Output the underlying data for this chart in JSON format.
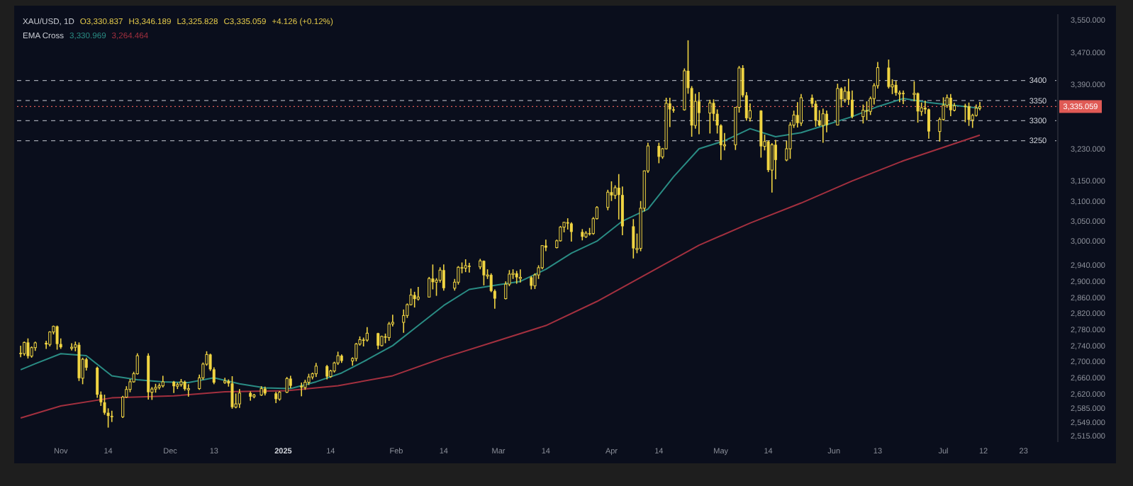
{
  "chart_data": {
    "type": "candlestick",
    "title": "XAU/USD, 1D",
    "annotations": [
      "O3,330.837",
      "H3,346.189",
      "L3,325.828",
      "C3,335.059",
      "+4.126 (+0.12%)"
    ],
    "legend_title": "EMA Cross",
    "legend": "top left",
    "color": "#f0d442",
    "x": [
      "2024-10-21",
      "2024-10-22",
      "2024-10-23",
      "2024-10-24",
      "2024-10-25",
      "2024-10-28",
      "2024-10-29",
      "2024-10-30",
      "2024-10-31",
      "2024-11-01",
      "2024-11-04",
      "2024-11-05",
      "2024-11-06",
      "2024-11-07",
      "2024-11-08",
      "2024-11-11",
      "2024-11-12",
      "2024-11-13",
      "2024-11-14",
      "2024-11-15",
      "2024-11-18",
      "2024-11-19",
      "2024-11-20",
      "2024-11-21",
      "2024-11-22",
      "2024-11-25",
      "2024-11-26",
      "2024-11-27",
      "2024-11-28",
      "2024-11-29",
      "2024-12-02",
      "2024-12-03",
      "2024-12-04",
      "2024-12-05",
      "2024-12-06",
      "2024-12-09",
      "2024-12-10",
      "2024-12-11",
      "2024-12-12",
      "2024-12-13",
      "2024-12-16",
      "2024-12-17",
      "2024-12-18",
      "2024-12-19",
      "2024-12-20",
      "2024-12-23",
      "2024-12-24",
      "2024-12-26",
      "2024-12-27",
      "2024-12-30",
      "2024-12-31",
      "2025-01-02",
      "2025-01-03",
      "2025-01-06",
      "2025-01-07",
      "2025-01-08",
      "2025-01-09",
      "2025-01-10",
      "2025-01-13",
      "2025-01-14",
      "2025-01-15",
      "2025-01-16",
      "2025-01-17",
      "2025-01-20",
      "2025-01-21",
      "2025-01-22",
      "2025-01-23",
      "2025-01-24",
      "2025-01-27",
      "2025-01-28",
      "2025-01-29",
      "2025-01-30",
      "2025-01-31",
      "2025-02-03",
      "2025-02-04",
      "2025-02-05",
      "2025-02-06",
      "2025-02-07",
      "2025-02-10",
      "2025-02-11",
      "2025-02-12",
      "2025-02-13",
      "2025-02-14",
      "2025-02-17",
      "2025-02-18",
      "2025-02-19",
      "2025-02-20",
      "2025-02-21",
      "2025-02-24",
      "2025-02-25",
      "2025-02-26",
      "2025-02-27",
      "2025-02-28",
      "2025-03-03",
      "2025-03-04",
      "2025-03-05",
      "2025-03-06",
      "2025-03-07",
      "2025-03-10",
      "2025-03-11",
      "2025-03-12",
      "2025-03-13",
      "2025-03-14",
      "2025-03-17",
      "2025-03-18",
      "2025-03-19",
      "2025-03-20",
      "2025-03-21",
      "2025-03-24",
      "2025-03-25",
      "2025-03-26",
      "2025-03-27",
      "2025-03-28",
      "2025-03-31",
      "2025-04-01",
      "2025-04-02",
      "2025-04-03",
      "2025-04-04",
      "2025-04-07",
      "2025-04-08",
      "2025-04-09",
      "2025-04-10",
      "2025-04-11",
      "2025-04-14",
      "2025-04-15",
      "2025-04-16",
      "2025-04-17",
      "2025-04-18",
      "2025-04-21",
      "2025-04-22",
      "2025-04-23",
      "2025-04-24",
      "2025-04-25",
      "2025-04-28",
      "2025-04-29",
      "2025-04-30",
      "2025-05-01",
      "2025-05-02",
      "2025-05-05",
      "2025-05-06",
      "2025-05-07",
      "2025-05-08",
      "2025-05-09",
      "2025-05-12",
      "2025-05-13",
      "2025-05-14",
      "2025-05-15",
      "2025-05-16",
      "2025-05-19",
      "2025-05-20",
      "2025-05-21",
      "2025-05-22",
      "2025-05-23",
      "2025-05-26",
      "2025-05-27",
      "2025-05-28",
      "2025-05-29",
      "2025-05-30",
      "2025-06-02",
      "2025-06-03",
      "2025-06-04",
      "2025-06-05",
      "2025-06-06",
      "2025-06-09",
      "2025-06-10",
      "2025-06-11",
      "2025-06-12",
      "2025-06-13",
      "2025-06-16",
      "2025-06-17",
      "2025-06-18",
      "2025-06-19",
      "2025-06-20",
      "2025-06-23",
      "2025-06-24",
      "2025-06-25",
      "2025-06-26",
      "2025-06-27",
      "2025-06-30",
      "2025-07-01",
      "2025-07-02",
      "2025-07-03",
      "2025-07-04",
      "2025-07-07",
      "2025-07-08",
      "2025-07-09",
      "2025-07-10",
      "2025-07-11"
    ],
    "ohlc": [
      [
        2722,
        2740,
        2711,
        2720
      ],
      [
        2720,
        2750,
        2715,
        2748
      ],
      [
        2748,
        2758,
        2708,
        2714
      ],
      [
        2714,
        2738,
        2710,
        2735
      ],
      [
        2735,
        2750,
        2727,
        2747
      ],
      [
        2747,
        2752,
        2732,
        2743
      ],
      [
        2743,
        2776,
        2738,
        2774
      ],
      [
        2774,
        2790,
        2768,
        2788
      ],
      [
        2788,
        2790,
        2730,
        2744
      ],
      [
        2744,
        2758,
        2732,
        2736
      ],
      [
        2736,
        2746,
        2728,
        2736
      ],
      [
        2736,
        2750,
        2726,
        2742
      ],
      [
        2742,
        2748,
        2652,
        2659
      ],
      [
        2659,
        2710,
        2644,
        2706
      ],
      [
        2706,
        2710,
        2678,
        2685
      ],
      [
        2685,
        2688,
        2610,
        2618
      ],
      [
        2618,
        2626,
        2590,
        2599
      ],
      [
        2599,
        2618,
        2568,
        2573
      ],
      [
        2573,
        2584,
        2536,
        2565
      ],
      [
        2565,
        2578,
        2550,
        2563
      ],
      [
        2563,
        2615,
        2560,
        2612
      ],
      [
        2612,
        2639,
        2610,
        2631
      ],
      [
        2631,
        2657,
        2624,
        2650
      ],
      [
        2650,
        2675,
        2648,
        2670
      ],
      [
        2670,
        2721,
        2668,
        2715
      ],
      [
        2715,
        2721,
        2606,
        2624
      ],
      [
        2624,
        2637,
        2605,
        2632
      ],
      [
        2632,
        2645,
        2623,
        2636
      ],
      [
        2636,
        2646,
        2631,
        2640
      ],
      [
        2640,
        2665,
        2636,
        2650
      ],
      [
        2650,
        2652,
        2622,
        2639
      ],
      [
        2639,
        2648,
        2632,
        2643
      ],
      [
        2643,
        2657,
        2638,
        2650
      ],
      [
        2650,
        2653,
        2628,
        2632
      ],
      [
        2632,
        2644,
        2613,
        2633
      ],
      [
        2633,
        2668,
        2630,
        2660
      ],
      [
        2660,
        2698,
        2655,
        2694
      ],
      [
        2694,
        2726,
        2690,
        2718
      ],
      [
        2718,
        2720,
        2677,
        2681
      ],
      [
        2681,
        2686,
        2644,
        2648
      ],
      [
        2648,
        2660,
        2645,
        2652
      ],
      [
        2652,
        2656,
        2638,
        2646
      ],
      [
        2646,
        2664,
        2583,
        2587
      ],
      [
        2587,
        2621,
        2584,
        2595
      ],
      [
        2595,
        2632,
        2585,
        2622
      ],
      [
        2622,
        2626,
        2603,
        2613
      ],
      [
        2613,
        2620,
        2609,
        2617
      ],
      [
        2617,
        2639,
        2615,
        2633
      ],
      [
        2633,
        2638,
        2616,
        2621
      ],
      [
        2621,
        2625,
        2597,
        2607
      ],
      [
        2607,
        2627,
        2603,
        2624
      ],
      [
        2624,
        2662,
        2622,
        2658
      ],
      [
        2658,
        2665,
        2634,
        2640
      ],
      [
        2640,
        2648,
        2614,
        2636
      ],
      [
        2636,
        2655,
        2630,
        2649
      ],
      [
        2649,
        2670,
        2642,
        2662
      ],
      [
        2662,
        2673,
        2656,
        2670
      ],
      [
        2670,
        2697,
        2662,
        2689
      ],
      [
        2689,
        2692,
        2656,
        2663
      ],
      [
        2663,
        2680,
        2660,
        2677
      ],
      [
        2677,
        2700,
        2673,
        2697
      ],
      [
        2697,
        2725,
        2692,
        2715
      ],
      [
        2715,
        2718,
        2697,
        2702
      ],
      [
        2702,
        2711,
        2690,
        2708
      ],
      [
        2708,
        2747,
        2701,
        2744
      ],
      [
        2744,
        2763,
        2740,
        2755
      ],
      [
        2755,
        2760,
        2738,
        2754
      ],
      [
        2754,
        2786,
        2750,
        2771
      ],
      [
        2771,
        2772,
        2731,
        2740
      ],
      [
        2740,
        2765,
        2738,
        2763
      ],
      [
        2763,
        2770,
        2746,
        2760
      ],
      [
        2760,
        2799,
        2752,
        2794
      ],
      [
        2794,
        2817,
        2788,
        2798
      ],
      [
        2798,
        2830,
        2772,
        2815
      ],
      [
        2815,
        2845,
        2809,
        2842
      ],
      [
        2842,
        2882,
        2840,
        2866
      ],
      [
        2866,
        2874,
        2835,
        2856
      ],
      [
        2856,
        2886,
        2852,
        2861
      ],
      [
        2861,
        2911,
        2860,
        2907
      ],
      [
        2907,
        2942,
        2880,
        2898
      ],
      [
        2898,
        2908,
        2864,
        2903
      ],
      [
        2903,
        2935,
        2897,
        2928
      ],
      [
        2928,
        2942,
        2877,
        2883
      ],
      [
        2883,
        2906,
        2877,
        2898
      ],
      [
        2898,
        2938,
        2892,
        2935
      ],
      [
        2935,
        2947,
        2920,
        2933
      ],
      [
        2933,
        2955,
        2923,
        2939
      ],
      [
        2939,
        2946,
        2922,
        2936
      ],
      [
        2936,
        2956,
        2930,
        2951
      ],
      [
        2951,
        2952,
        2890,
        2915
      ],
      [
        2915,
        2930,
        2906,
        2916
      ],
      [
        2916,
        2920,
        2873,
        2876
      ],
      [
        2876,
        2880,
        2832,
        2857
      ],
      [
        2857,
        2900,
        2855,
        2893
      ],
      [
        2893,
        2928,
        2888,
        2918
      ],
      [
        2918,
        2930,
        2906,
        2920
      ],
      [
        2920,
        2926,
        2894,
        2910
      ],
      [
        2910,
        2930,
        2897,
        2910
      ],
      [
        2910,
        2913,
        2880,
        2889
      ],
      [
        2889,
        2920,
        2881,
        2916
      ],
      [
        2916,
        2940,
        2906,
        2934
      ],
      [
        2934,
        2990,
        2930,
        2989
      ],
      [
        2989,
        3004,
        2975,
        2984
      ],
      [
        2984,
        3004,
        2982,
        3001
      ],
      [
        3001,
        3038,
        2999,
        3035
      ],
      [
        3035,
        3048,
        3022,
        3047
      ],
      [
        3047,
        3057,
        3029,
        3044
      ],
      [
        3044,
        3047,
        2999,
        3023
      ],
      [
        3023,
        3030,
        3002,
        3011
      ],
      [
        3011,
        3025,
        3008,
        3020
      ],
      [
        3020,
        3033,
        3014,
        3019
      ],
      [
        3019,
        3060,
        3016,
        3056
      ],
      [
        3056,
        3087,
        3054,
        3084
      ],
      [
        3084,
        3128,
        3077,
        3122
      ],
      [
        3122,
        3149,
        3100,
        3114
      ],
      [
        3114,
        3139,
        3105,
        3133
      ],
      [
        3133,
        3167,
        3054,
        3115
      ],
      [
        3115,
        3136,
        3015,
        3037
      ],
      [
        3037,
        3055,
        2957,
        2982
      ],
      [
        2982,
        3019,
        2970,
        2982
      ],
      [
        2982,
        3100,
        2975,
        3082
      ],
      [
        3082,
        3176,
        3074,
        3175
      ],
      [
        3175,
        3245,
        3170,
        3237
      ],
      [
        3237,
        3245,
        3194,
        3210
      ],
      [
        3210,
        3232,
        3205,
        3230
      ],
      [
        3230,
        3357,
        3228,
        3343
      ],
      [
        3343,
        3357,
        3284,
        3328
      ],
      [
        3328,
        3335,
        3320,
        3327
      ],
      [
        3327,
        3430,
        3325,
        3424
      ],
      [
        3424,
        3500,
        3367,
        3381
      ],
      [
        3381,
        3386,
        3260,
        3288
      ],
      [
        3288,
        3367,
        3280,
        3348
      ],
      [
        3348,
        3371,
        3266,
        3319
      ],
      [
        3319,
        3352,
        3268,
        3344
      ],
      [
        3344,
        3353,
        3299,
        3317
      ],
      [
        3317,
        3328,
        3268,
        3288
      ],
      [
        3288,
        3291,
        3202,
        3239
      ],
      [
        3239,
        3269,
        3226,
        3240
      ],
      [
        3240,
        3334,
        3227,
        3333
      ],
      [
        3333,
        3436,
        3320,
        3431
      ],
      [
        3431,
        3438,
        3358,
        3363
      ],
      [
        3363,
        3371,
        3300,
        3306
      ],
      [
        3306,
        3343,
        3298,
        3325
      ],
      [
        3325,
        3326,
        3208,
        3236
      ],
      [
        3236,
        3265,
        3226,
        3248
      ],
      [
        3248,
        3251,
        3172,
        3177
      ],
      [
        3177,
        3244,
        3121,
        3240
      ],
      [
        3240,
        3252,
        3154,
        3202
      ],
      [
        3202,
        3250,
        3199,
        3230
      ],
      [
        3230,
        3296,
        3205,
        3289
      ],
      [
        3289,
        3325,
        3282,
        3314
      ],
      [
        3314,
        3346,
        3283,
        3294
      ],
      [
        3294,
        3366,
        3287,
        3357
      ],
      [
        3357,
        3365,
        3333,
        3342
      ],
      [
        3342,
        3350,
        3285,
        3300
      ],
      [
        3300,
        3326,
        3286,
        3288
      ],
      [
        3288,
        3330,
        3245,
        3317
      ],
      [
        3317,
        3325,
        3271,
        3289
      ],
      [
        3289,
        3392,
        3288,
        3380
      ],
      [
        3380,
        3383,
        3333,
        3353
      ],
      [
        3353,
        3385,
        3345,
        3373
      ],
      [
        3373,
        3404,
        3339,
        3352
      ],
      [
        3352,
        3375,
        3306,
        3310
      ],
      [
        3310,
        3340,
        3293,
        3326
      ],
      [
        3326,
        3348,
        3301,
        3323
      ],
      [
        3323,
        3360,
        3314,
        3355
      ],
      [
        3355,
        3393,
        3340,
        3387
      ],
      [
        3387,
        3446,
        3380,
        3432
      ],
      [
        3432,
        3452,
        3380,
        3384
      ],
      [
        3384,
        3403,
        3366,
        3389
      ],
      [
        3389,
        3399,
        3362,
        3369
      ],
      [
        3369,
        3375,
        3346,
        3369
      ],
      [
        3369,
        3375,
        3341,
        3368
      ],
      [
        3368,
        3398,
        3348,
        3368
      ],
      [
        3368,
        3370,
        3295,
        3323
      ],
      [
        3323,
        3345,
        3312,
        3332
      ],
      [
        3332,
        3350,
        3317,
        3328
      ],
      [
        3328,
        3330,
        3255,
        3273
      ],
      [
        3273,
        3308,
        3248,
        3303
      ],
      [
        3303,
        3358,
        3300,
        3338
      ],
      [
        3338,
        3365,
        3332,
        3357
      ],
      [
        3357,
        3366,
        3311,
        3326
      ],
      [
        3326,
        3344,
        3323,
        3337
      ],
      [
        3337,
        3342,
        3296,
        3336
      ],
      [
        3336,
        3345,
        3287,
        3302
      ],
      [
        3302,
        3317,
        3282,
        3313
      ],
      [
        3313,
        3340,
        3310,
        3331
      ],
      [
        3330.837,
        3346.189,
        3325.828,
        3335.059
      ]
    ],
    "series": [
      {
        "type": "line",
        "name": "3,330.969",
        "color": "#2a8c84",
        "x": [
          "2024-10-21",
          "2024-10-25",
          "2024-11-01",
          "2024-11-08",
          "2024-11-15",
          "2024-11-22",
          "2024-11-29",
          "2024-12-06",
          "2024-12-13",
          "2024-12-20",
          "2024-12-27",
          "2025-01-03",
          "2025-01-10",
          "2025-01-17",
          "2025-01-24",
          "2025-01-31",
          "2025-02-07",
          "2025-02-14",
          "2025-02-21",
          "2025-02-28",
          "2025-03-07",
          "2025-03-14",
          "2025-03-21",
          "2025-03-28",
          "2025-04-04",
          "2025-04-11",
          "2025-04-18",
          "2025-04-25",
          "2025-05-02",
          "2025-05-09",
          "2025-05-16",
          "2025-05-23",
          "2025-05-30",
          "2025-06-06",
          "2025-06-13",
          "2025-06-20",
          "2025-06-27",
          "2025-07-04",
          "2025-07-11"
        ],
        "values": [
          2680,
          2695,
          2720,
          2715,
          2665,
          2655,
          2650,
          2648,
          2660,
          2645,
          2635,
          2633,
          2650,
          2672,
          2705,
          2740,
          2790,
          2840,
          2880,
          2890,
          2900,
          2930,
          2970,
          3000,
          3050,
          3080,
          3160,
          3230,
          3250,
          3280,
          3260,
          3270,
          3290,
          3310,
          3335,
          3355,
          3345,
          3338,
          3331
        ]
      },
      {
        "type": "line",
        "name": "3,264.464",
        "color": "#a3303f",
        "x": [
          "2024-10-21",
          "2024-11-01",
          "2024-11-15",
          "2024-12-02",
          "2024-12-16",
          "2025-01-02",
          "2025-01-16",
          "2025-01-31",
          "2025-02-14",
          "2025-02-28",
          "2025-03-14",
          "2025-03-28",
          "2025-04-11",
          "2025-04-25",
          "2025-05-09",
          "2025-05-23",
          "2025-06-06",
          "2025-06-20",
          "2025-07-11"
        ],
        "values": [
          2560,
          2590,
          2610,
          2615,
          2625,
          2628,
          2640,
          2665,
          2710,
          2750,
          2790,
          2850,
          2920,
          2990,
          3045,
          3095,
          3150,
          3200,
          3264
        ]
      }
    ],
    "ref_lines": [
      {
        "axis": "y",
        "value": 3400,
        "label": "3400",
        "line_style": "dashed"
      },
      {
        "axis": "y",
        "value": 3350,
        "label": "3350",
        "line_style": "dashed"
      },
      {
        "axis": "y",
        "value": 3300,
        "label": "3300",
        "line_style": "dashed"
      },
      {
        "axis": "y",
        "value": 3250,
        "label": "3250",
        "line_style": "dashed"
      },
      {
        "axis": "y",
        "value": 3335.059,
        "label": "3,335.059",
        "color": "#e05a55",
        "line_style": "dotted"
      }
    ],
    "xlim": [
      "2024-10-20",
      "2025-08-01"
    ],
    "xticks": [
      {
        "value": "2024-11-01",
        "label": "Nov"
      },
      {
        "value": "2024-11-14",
        "label": "14"
      },
      {
        "value": "2024-12-01",
        "label": "Dec"
      },
      {
        "value": "2024-12-13",
        "label": "13"
      },
      {
        "value": "2025-01-01",
        "label": "2025"
      },
      {
        "value": "2025-01-14",
        "label": "14"
      },
      {
        "value": "2025-02-01",
        "label": "Feb"
      },
      {
        "value": "2025-02-14",
        "label": "14"
      },
      {
        "value": "2025-03-01",
        "label": "Mar"
      },
      {
        "value": "2025-03-14",
        "label": "14"
      },
      {
        "value": "2025-04-01",
        "label": "Apr"
      },
      {
        "value": "2025-04-14",
        "label": "14"
      },
      {
        "value": "2025-05-01",
        "label": "May"
      },
      {
        "value": "2025-05-14",
        "label": "14"
      },
      {
        "value": "2025-06-01",
        "label": "Jun"
      },
      {
        "value": "2025-06-13",
        "label": "13"
      },
      {
        "value": "2025-07-01",
        "label": "Jul"
      },
      {
        "value": "2025-07-12",
        "label": "12"
      },
      {
        "value": "2025-07-23",
        "label": "23"
      }
    ],
    "ylim": [
      2500,
      3565
    ],
    "yticks": [
      {
        "value": 3550,
        "label": "3,550.000"
      },
      {
        "value": 3470,
        "label": "3,470.000"
      },
      {
        "value": 3390,
        "label": "3,390.000"
      },
      {
        "value": 3230,
        "label": "3,230.000"
      },
      {
        "value": 3150,
        "label": "3,150.000"
      },
      {
        "value": 3100,
        "label": "3,100.000"
      },
      {
        "value": 3050,
        "label": "3,050.000"
      },
      {
        "value": 3000,
        "label": "3,000.000"
      },
      {
        "value": 2940,
        "label": "2,940.000"
      },
      {
        "value": 2900,
        "label": "2,900.000"
      },
      {
        "value": 2860,
        "label": "2,860.000"
      },
      {
        "value": 2820,
        "label": "2,820.000"
      },
      {
        "value": 2780,
        "label": "2,780.000"
      },
      {
        "value": 2740,
        "label": "2,740.000"
      },
      {
        "value": 2700,
        "label": "2,700.000"
      },
      {
        "value": 2660,
        "label": "2,660.000"
      },
      {
        "value": 2620,
        "label": "2,620.000"
      },
      {
        "value": 2585,
        "label": "2,585.000"
      },
      {
        "value": 2549,
        "label": "2,549.000"
      },
      {
        "value": 2515,
        "label": "2,515.000"
      }
    ]
  }
}
